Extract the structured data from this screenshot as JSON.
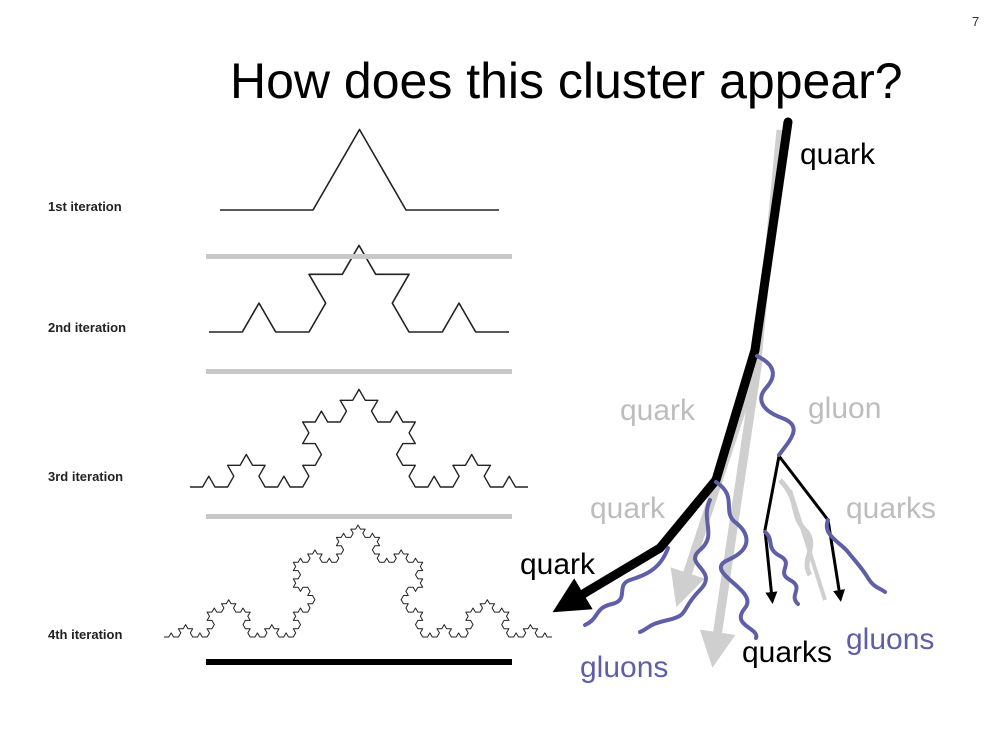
{
  "slide": {
    "page_number": "7",
    "title": "How does this cluster appear?"
  },
  "koch": {
    "iterations": [
      "1st iteration",
      "2nd iteration",
      "3rd iteration",
      "4th iteration"
    ]
  },
  "cascade": {
    "labels": {
      "quark_top": "quark",
      "quark_grey_1": "quark",
      "quark_grey_2": "quark",
      "quark_black": "quark",
      "gluon": "gluon",
      "quarks_grey": "quarks",
      "quarks_black": "quarks",
      "gluons_left": "gluons",
      "gluons_right": "gluons"
    },
    "colors": {
      "quark": "#000000",
      "shadow": "#cfcfcf",
      "gluon": "#5f5fa7"
    }
  }
}
